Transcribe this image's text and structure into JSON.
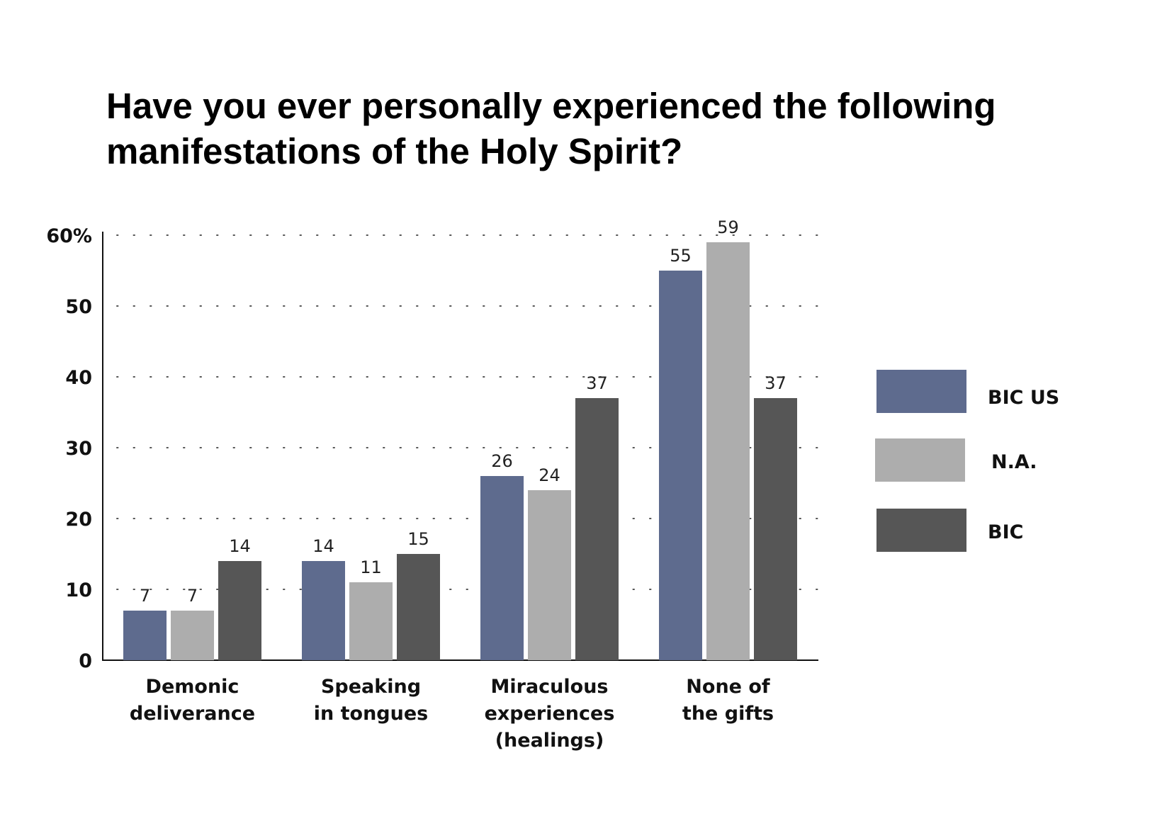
{
  "chart_data": {
    "type": "bar",
    "title_lines": [
      "Have you ever personally experienced the following",
      "manifestations of the Holy Spirit?"
    ],
    "categories": [
      [
        "Demonic",
        "deliverance"
      ],
      [
        "Speaking",
        "in tongues"
      ],
      [
        "Miraculous",
        "experiences",
        "(healings)"
      ],
      [
        "None of",
        "the gifts"
      ]
    ],
    "series": [
      {
        "name": "BIC US",
        "color": "#5e6b8e",
        "values": [
          7,
          14,
          26,
          55
        ]
      },
      {
        "name": "N.A.",
        "color": "#adadad",
        "values": [
          7,
          11,
          24,
          59
        ]
      },
      {
        "name": "BIC",
        "color": "#565656",
        "values": [
          14,
          15,
          37,
          37
        ]
      }
    ],
    "y_ticks": [
      {
        "value": 0,
        "label": "0"
      },
      {
        "value": 10,
        "label": "10"
      },
      {
        "value": 20,
        "label": "20"
      },
      {
        "value": 30,
        "label": "30"
      },
      {
        "value": 40,
        "label": "40"
      },
      {
        "value": 50,
        "label": "50"
      },
      {
        "value": 60,
        "label": "60%"
      }
    ],
    "ylim": [
      0,
      60
    ],
    "grid": true,
    "legend_position": "right"
  }
}
